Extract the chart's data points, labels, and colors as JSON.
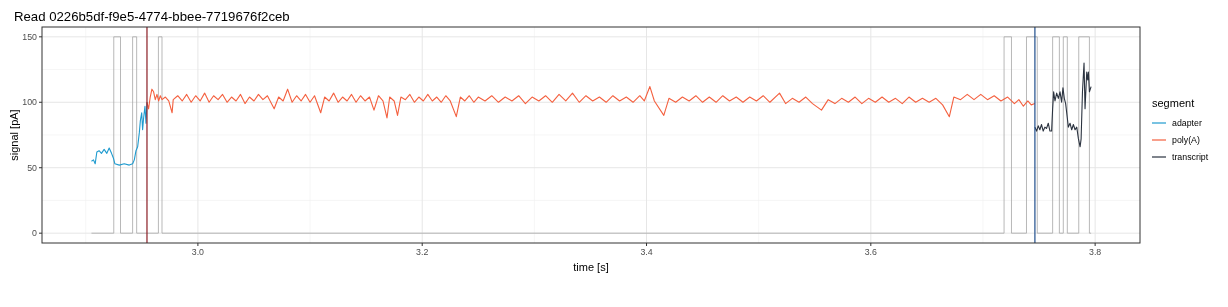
{
  "chart_data": {
    "type": "line",
    "title": "Read 0226b5df-f9e5-4774-bbee-7719676f2ceb",
    "xlabel": "time [s]",
    "ylabel": "signal [pA]",
    "legend_title": "segment",
    "xlim": [
      2.861,
      3.84
    ],
    "xticks": [
      {
        "value": 3.0,
        "label": "3.0"
      },
      3.2,
      3.4,
      3.6,
      3.8
    ],
    "ylim": [
      -7.5,
      157.5
    ],
    "yticks": [
      0,
      50,
      100,
      150
    ],
    "grid": true,
    "legend": "right",
    "ref_lines": [
      {
        "axis": "x",
        "value": 2.9546,
        "color": "#8b1c24"
      },
      {
        "axis": "x",
        "value": 3.7463,
        "color": "#1f4e8c"
      }
    ],
    "series": [
      {
        "type": "step",
        "color": "#a6a6a6",
        "x": [
          2.9051,
          2.925,
          2.931,
          2.9418,
          2.9454,
          2.9648,
          2.968,
          3.7188,
          3.7254,
          3.7388,
          3.7484,
          3.7621,
          3.7681,
          3.7716,
          3.7752,
          3.7854,
          3.7949,
          3.7964
        ],
        "values": [
          0,
          150,
          0,
          150,
          0,
          150,
          0,
          150,
          0,
          150,
          0,
          150,
          0,
          150,
          0,
          150,
          0,
          0
        ]
      },
      {
        "name": "adapter",
        "color": "#1f9bcf",
        "x": [
          2.9051,
          2.9069,
          2.9084,
          2.9099,
          2.9119,
          2.914,
          2.9164,
          2.9188,
          2.9209,
          2.923,
          2.9248,
          2.926,
          2.9299,
          2.9343,
          2.9388,
          2.9418,
          2.9433,
          2.9448,
          2.9463,
          2.9478,
          2.9487,
          2.9499,
          2.9507,
          2.9516,
          2.9528,
          2.9537,
          2.9546
        ],
        "values": [
          55,
          56,
          53,
          62,
          63,
          61,
          64,
          61,
          65,
          61,
          57,
          53,
          52,
          53,
          52,
          53,
          56,
          63,
          66,
          77,
          86,
          92,
          79,
          88,
          97,
          84,
          100
        ]
      },
      {
        "name": "poly(A)",
        "color": "#f4603f",
        "x": [
          2.9546,
          2.956,
          2.9575,
          2.959,
          2.9605,
          2.962,
          2.9635,
          2.965,
          2.9665,
          2.968,
          2.971,
          2.974,
          2.977,
          2.978,
          2.982,
          2.986,
          2.99,
          2.994,
          2.998,
          3.002,
          3.006,
          3.01,
          3.014,
          3.018,
          3.022,
          3.026,
          3.03,
          3.034,
          3.038,
          3.042,
          3.046,
          3.05,
          3.054,
          3.058,
          3.062,
          3.068,
          3.072,
          3.076,
          3.08,
          3.084,
          3.088,
          3.092,
          3.096,
          3.1,
          3.104,
          3.1095,
          3.113,
          3.117,
          3.121,
          3.125,
          3.129,
          3.133,
          3.137,
          3.141,
          3.145,
          3.149,
          3.153,
          3.157,
          3.161,
          3.165,
          3.1686,
          3.171,
          3.175,
          3.178,
          3.181,
          3.185,
          3.189,
          3.193,
          3.197,
          3.201,
          3.205,
          3.209,
          3.213,
          3.217,
          3.221,
          3.225,
          3.2304,
          3.234,
          3.238,
          3.242,
          3.246,
          3.25,
          3.256,
          3.262,
          3.268,
          3.274,
          3.28,
          3.286,
          3.292,
          3.298,
          3.304,
          3.31,
          3.316,
          3.322,
          3.328,
          3.334,
          3.34,
          3.346,
          3.352,
          3.358,
          3.364,
          3.37,
          3.376,
          3.382,
          3.388,
          3.394,
          3.398,
          3.403,
          3.407,
          3.4154,
          3.42,
          3.426,
          3.432,
          3.438,
          3.444,
          3.45,
          3.456,
          3.462,
          3.468,
          3.474,
          3.48,
          3.486,
          3.492,
          3.498,
          3.504,
          3.51,
          3.5186,
          3.524,
          3.53,
          3.536,
          3.542,
          3.548,
          3.556,
          3.562,
          3.568,
          3.574,
          3.58,
          3.586,
          3.592,
          3.598,
          3.604,
          3.61,
          3.616,
          3.622,
          3.628,
          3.634,
          3.64,
          3.646,
          3.652,
          3.658,
          3.664,
          3.67,
          3.674,
          3.68,
          3.686,
          3.692,
          3.698,
          3.704,
          3.71,
          3.716,
          3.722,
          3.728,
          3.732,
          3.736,
          3.74,
          3.743,
          3.7463
        ],
        "values": [
          100,
          95,
          104,
          110,
          108,
          102,
          106,
          101,
          105,
          102,
          104,
          101,
          92,
          102,
          105,
          101,
          106,
          100,
          105,
          101,
          107,
          100,
          105,
          102,
          106,
          100,
          104,
          101,
          106,
          99,
          104,
          101,
          106,
          102,
          105,
          95,
          104,
          101,
          110,
          100,
          105,
          101,
          106,
          100,
          105,
          92,
          104,
          101,
          107,
          100,
          104,
          101,
          106,
          100,
          105,
          101,
          104,
          94,
          105,
          101,
          88,
          104,
          101,
          90,
          104,
          102,
          106,
          100,
          104,
          101,
          106,
          101,
          104,
          100,
          105,
          101,
          89,
          104,
          101,
          105,
          100,
          104,
          101,
          105,
          100,
          104,
          101,
          105,
          99,
          104,
          101,
          105,
          100,
          106,
          101,
          107,
          100,
          105,
          101,
          104,
          100,
          105,
          101,
          104,
          100,
          105,
          101,
          112,
          101,
          90,
          103,
          100,
          104,
          101,
          105,
          100,
          104,
          100,
          105,
          101,
          104,
          100,
          104,
          101,
          105,
          100,
          107,
          99,
          103,
          100,
          104,
          99,
          94,
          102,
          99,
          103,
          100,
          104,
          99,
          103,
          100,
          104,
          100,
          103,
          99,
          104,
          100,
          103,
          100,
          103,
          98,
          89,
          104,
          102,
          106,
          102,
          106,
          102,
          105,
          101,
          104,
          99,
          102,
          97,
          101,
          98,
          99
        ]
      },
      {
        "name": "transcript",
        "color": "#2b3340",
        "x": [
          3.7463,
          3.7478,
          3.7493,
          3.7507,
          3.7522,
          3.7537,
          3.7552,
          3.7567,
          3.7582,
          3.7597,
          3.7612,
          3.7621,
          3.763,
          3.7642,
          3.7657,
          3.7672,
          3.7687,
          3.7701,
          3.7713,
          3.7725,
          3.7737,
          3.7752,
          3.7761,
          3.7776,
          3.7791,
          3.7806,
          3.7821,
          3.7836,
          3.7851,
          3.7866,
          3.7875,
          3.7887,
          3.7901,
          3.791,
          3.7925,
          3.7934,
          3.794,
          3.7949,
          3.7964
        ],
        "values": [
          81,
          78,
          82,
          79,
          83,
          78,
          81,
          80,
          84,
          78,
          78,
          95,
          108,
          101,
          107,
          103,
          108,
          100,
          111,
          103,
          99,
          88,
          81,
          84,
          79,
          83,
          79,
          81,
          72,
          66,
          72,
          108,
          130,
          95,
          123,
          117,
          123,
          108,
          112
        ]
      }
    ]
  }
}
